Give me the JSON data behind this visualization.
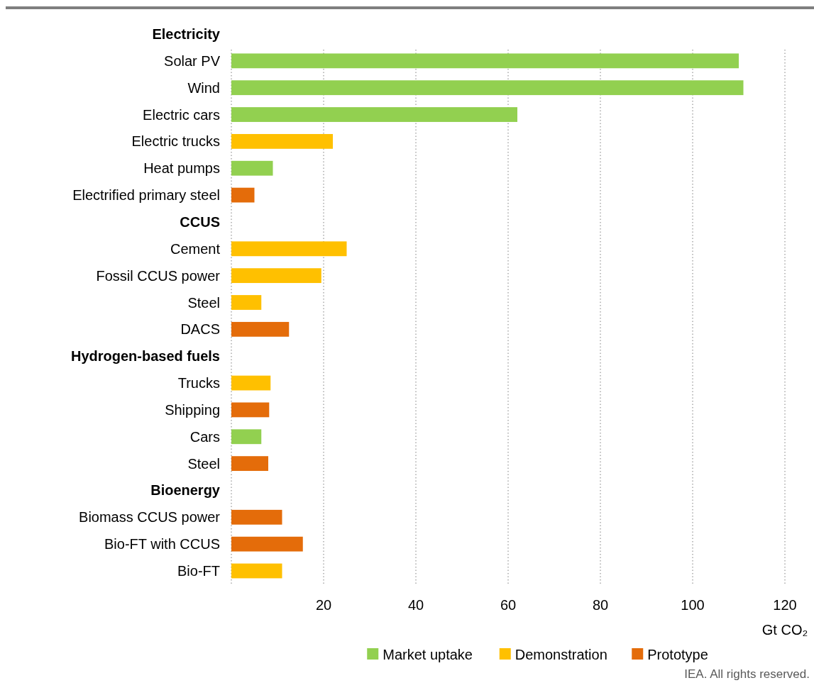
{
  "chart_data": {
    "type": "bar",
    "orientation": "horizontal",
    "xlabel": "Gt CO₂",
    "categories": [
      "Electricity",
      "Solar PV",
      "Wind",
      "Electric cars",
      "Electric trucks",
      "Heat pumps",
      "Electrified primary steel",
      "CCUS",
      "Cement",
      "Fossil CCUS power",
      "Steel",
      "DACS",
      "Hydrogen-based fuels",
      "Trucks",
      "Shipping",
      "Cars",
      "Steel",
      "Bioenergy",
      "Biomass CCUS power",
      "Bio-FT with CCUS",
      "Bio-FT"
    ],
    "series": [
      {
        "name": "Market uptake",
        "color": "#92d050",
        "values": [
          null,
          110,
          111,
          62,
          null,
          9,
          null,
          null,
          null,
          null,
          null,
          null,
          null,
          null,
          null,
          6.5,
          null,
          null,
          null,
          null,
          null
        ]
      },
      {
        "name": "Demonstration",
        "color": "#ffc000",
        "values": [
          null,
          null,
          null,
          null,
          22,
          null,
          null,
          null,
          25,
          19.5,
          6.5,
          null,
          null,
          8.5,
          null,
          null,
          null,
          null,
          null,
          null,
          11
        ]
      },
      {
        "name": "Prototype",
        "color": "#e46c0a",
        "values": [
          null,
          null,
          null,
          null,
          null,
          null,
          5,
          null,
          null,
          null,
          null,
          12.5,
          null,
          null,
          8.2,
          null,
          8,
          null,
          11,
          15.5,
          null
        ]
      }
    ],
    "xlim": [
      0,
      120
    ],
    "xticks": [
      20,
      40,
      60,
      80,
      100,
      120
    ],
    "grid": "x",
    "legend": "bottom",
    "annotations": [
      "IEA. All rights reserved."
    ]
  }
}
